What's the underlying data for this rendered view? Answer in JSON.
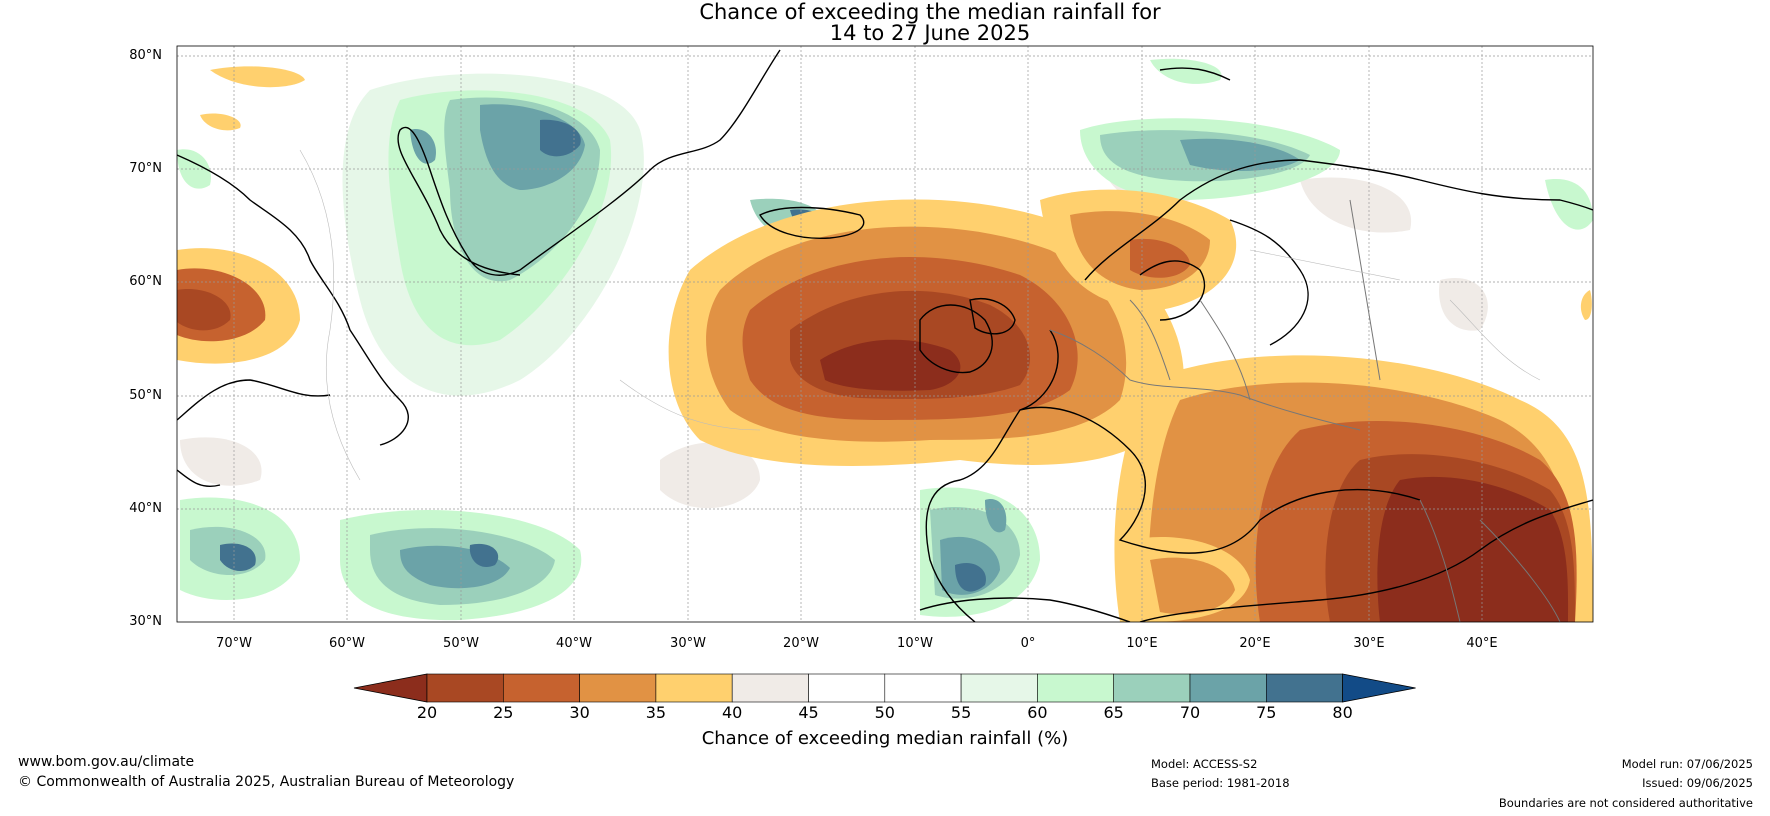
{
  "title": {
    "line1": "Chance of exceeding the median rainfall for",
    "line2": "14 to 27 June 2025"
  },
  "map": {
    "lat_labels": [
      "80°N",
      "70°N",
      "60°N",
      "50°N",
      "40°N",
      "30°N"
    ],
    "lon_labels": [
      "70°W",
      "60°W",
      "50°W",
      "40°W",
      "30°W",
      "20°W",
      "10°W",
      "0°",
      "10°E",
      "20°E",
      "30°E",
      "40°E"
    ]
  },
  "colorbar": {
    "ticks": [
      "20",
      "25",
      "30",
      "35",
      "40",
      "45",
      "50",
      "55",
      "60",
      "65",
      "70",
      "75",
      "80"
    ],
    "colors": [
      "#8c2d1c",
      "#a94823",
      "#c6622f",
      "#e19244",
      "#ffd06e",
      "#f0ebe7",
      "#ffffff",
      "#ffffff",
      "#e6f7e8",
      "#c8f8cf",
      "#9bd0bb",
      "#6ba3a8",
      "#42728f",
      "#124b87"
    ],
    "label": "Chance of exceeding median rainfall (%)"
  },
  "footer": {
    "website": "www.bom.gov.au/climate",
    "copyright": "© Commonwealth of Australia 2025, Australian Bureau of Meteorology",
    "model": "Model: ACCESS-S2",
    "base_period": "Base period: 1981-2018",
    "model_run": "Model run: 07/06/2025",
    "issued": "Issued: 09/06/2025",
    "disclaimer": "Boundaries are not considered authoritative"
  }
}
